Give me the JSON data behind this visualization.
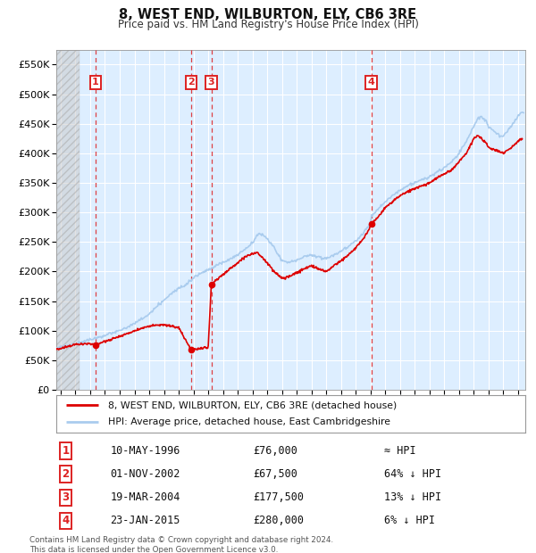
{
  "title1": "8, WEST END, WILBURTON, ELY, CB6 3RE",
  "title2": "Price paid vs. HM Land Registry's House Price Index (HPI)",
  "ytick_labels": [
    "£0",
    "£50K",
    "£100K",
    "£150K",
    "£200K",
    "£250K",
    "£300K",
    "£350K",
    "£400K",
    "£450K",
    "£500K",
    "£550K"
  ],
  "yticks": [
    0,
    50000,
    100000,
    150000,
    200000,
    250000,
    300000,
    350000,
    400000,
    450000,
    500000,
    550000
  ],
  "xlim_start": 1993.7,
  "xlim_end": 2025.5,
  "ylim_top": 575000,
  "background_color": "#ddeeff",
  "hatch_color": "#cccccc",
  "grid_color": "#ffffff",
  "legend_line1": "8, WEST END, WILBURTON, ELY, CB6 3RE (detached house)",
  "legend_line2": "HPI: Average price, detached house, East Cambridgeshire",
  "sales": [
    {
      "num": 1,
      "date": "10-MAY-1996",
      "year": 1996.36,
      "price": 76000,
      "label": "≈ HPI"
    },
    {
      "num": 2,
      "date": "01-NOV-2002",
      "year": 2002.84,
      "price": 67500,
      "label": "64% ↓ HPI"
    },
    {
      "num": 3,
      "date": "19-MAR-2004",
      "year": 2004.21,
      "price": 177500,
      "label": "13% ↓ HPI"
    },
    {
      "num": 4,
      "date": "23-JAN-2015",
      "year": 2015.06,
      "price": 280000,
      "label": "6% ↓ HPI"
    }
  ],
  "footer": "Contains HM Land Registry data © Crown copyright and database right 2024.\nThis data is licensed under the Open Government Licence v3.0.",
  "hpi_color": "#aaccee",
  "sale_color": "#dd0000",
  "hatch_region_end": 1995.3
}
